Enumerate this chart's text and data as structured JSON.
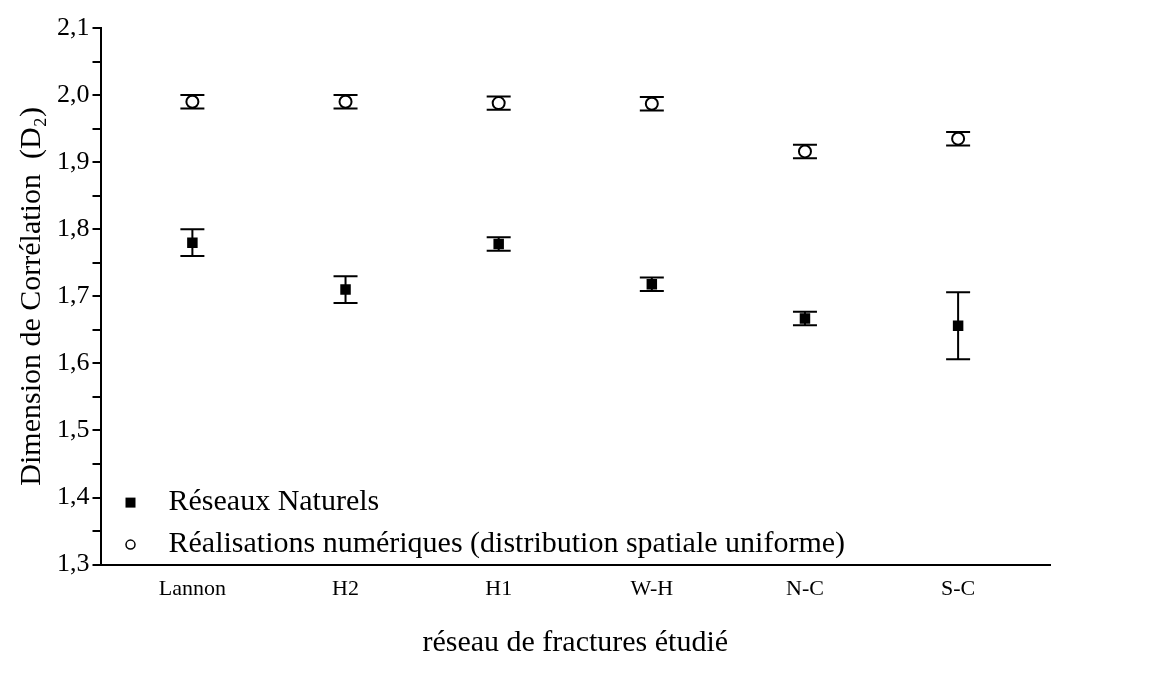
{
  "chart_data": {
    "type": "scatter",
    "xlabel": "réseau de fractures étudié",
    "ylabel": "Dimension de Corrélation  (D₂)",
    "categories": [
      "Lannon",
      "H2",
      "H1",
      "W-H",
      "N-C",
      "S-C"
    ],
    "series": [
      {
        "name": "Réseaux Naturels",
        "color": "#000000",
        "marker": "square",
        "values": [
          1.78,
          1.71,
          1.778,
          1.718,
          1.667,
          1.656
        ],
        "errors": [
          0.02,
          0.02,
          0.01,
          0.01,
          0.01,
          0.05
        ]
      },
      {
        "name": "Réalisations numériques (distribution spatiale uniforme)",
        "color": "#000000",
        "marker": "circle",
        "values": [
          1.99,
          1.99,
          1.988,
          1.987,
          1.916,
          1.935
        ],
        "errors": [
          0.01,
          0.01,
          0.01,
          0.01,
          0.01,
          0.01
        ]
      }
    ],
    "ylim": [
      1.3,
      2.1
    ],
    "yticks": [
      {
        "value": 1.3,
        "label": "1,3"
      },
      {
        "value": 1.35,
        "label": null
      },
      {
        "value": 1.4,
        "label": "1,4"
      },
      {
        "value": 1.45,
        "label": null
      },
      {
        "value": 1.5,
        "label": "1,5"
      },
      {
        "value": 1.55,
        "label": null
      },
      {
        "value": 1.6,
        "label": "1,6"
      },
      {
        "value": 1.65,
        "label": null
      },
      {
        "value": 1.7,
        "label": "1,7"
      },
      {
        "value": 1.75,
        "label": null
      },
      {
        "value": 1.8,
        "label": "1,8"
      },
      {
        "value": 1.85,
        "label": null
      },
      {
        "value": 1.9,
        "label": "1,9"
      },
      {
        "value": 1.95,
        "label": null
      },
      {
        "value": 2.0,
        "label": "2,0"
      },
      {
        "value": 2.05,
        "label": null
      },
      {
        "value": 2.1,
        "label": "2,1"
      }
    ],
    "grid": false,
    "legend": "bottom left"
  }
}
